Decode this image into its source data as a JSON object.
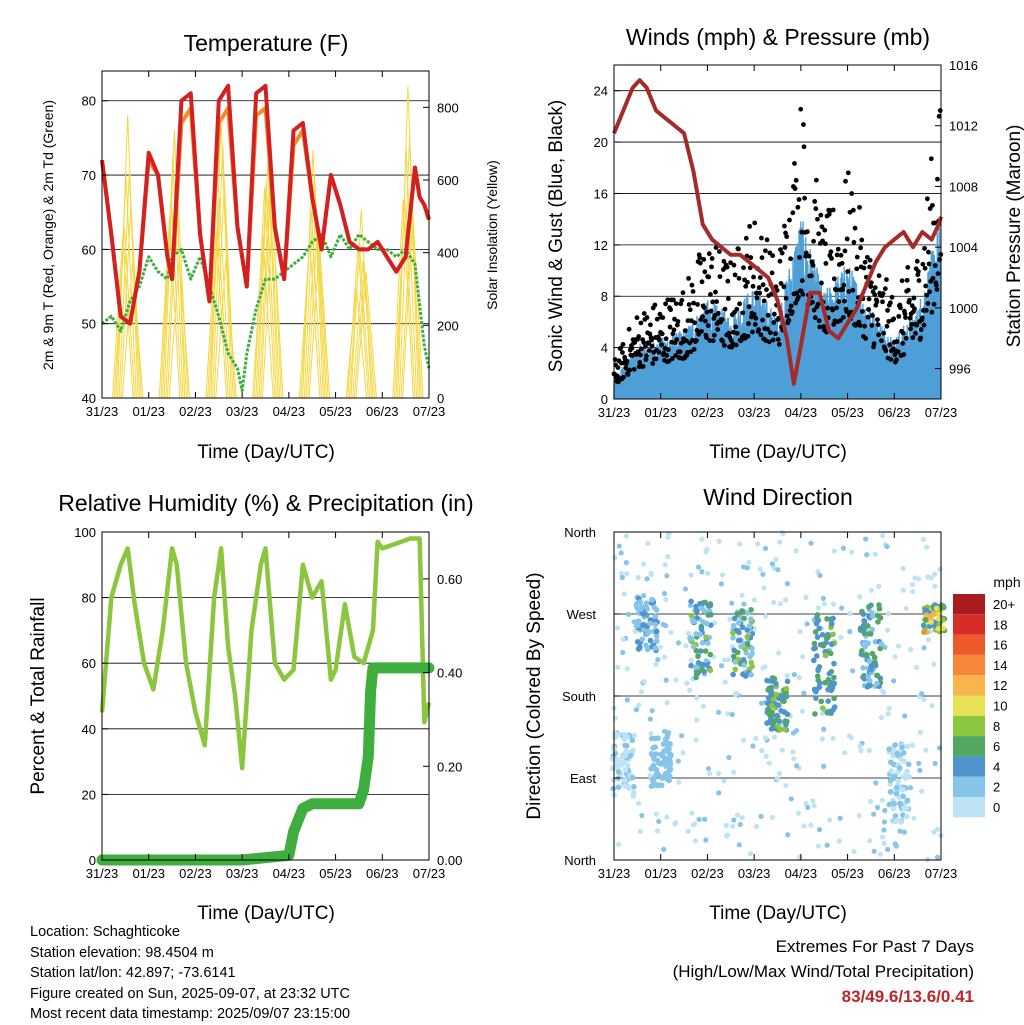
{
  "panels": {
    "temperature": {
      "title": "Temperature (F)",
      "ylabel": "2m & 9m T (Red, Orange) & 2m Td (Green)",
      "y2label": "Solar Insolation (Yellow)",
      "xlabel": "Time (Day/UTC)"
    },
    "winds": {
      "title": "Winds (mph) & Pressure (mb)",
      "ylabel": "Sonic Wind & Gust (Blue, Black)",
      "y2label": "Station Pressure (Maroon)",
      "xlabel": "Time (Day/UTC)"
    },
    "humidity": {
      "title": "Relative Humidity (%) & Precipitation (in)",
      "ylabel": "Percent & Total Rainfall",
      "xlabel": "Time (Day/UTC)"
    },
    "direction": {
      "title": "Wind Direction",
      "ylabel": "Direction (Colored By Speed)",
      "xlabel": "Time (Day/UTC)",
      "colorbar_title": "mph"
    }
  },
  "footer": {
    "location": "Location: Schaghticoke",
    "elevation": "Station elevation: 98.4504 m",
    "latlon": "Station lat/lon: 42.897; -73.6141",
    "created": "Figure created on Sun, 2025-09-07, at 23:32 UTC",
    "recent": "Most recent data timestamp: 2025/09/07 23:15:00"
  },
  "extremes": {
    "title": "Extremes For Past 7 Days",
    "subtitle": "(High/Low/Max Wind/Total Precipitation)",
    "values": "83/49.6/13.6/0.41"
  },
  "chart_data": [
    {
      "type": "line",
      "id": "temperature",
      "x_ticks": [
        "31/23",
        "01/23",
        "02/23",
        "03/23",
        "04/23",
        "05/23",
        "06/23",
        "07/23"
      ],
      "ylim": [
        40,
        84
      ],
      "yticks": [
        40,
        50,
        60,
        70,
        80
      ],
      "y2lim": [
        0,
        900
      ],
      "y2ticks": [
        0,
        200,
        400,
        600,
        800
      ],
      "grid": true,
      "series": [
        {
          "color": "#d42020",
          "x": [
            0,
            0.2,
            0.4,
            0.6,
            0.8,
            1.0,
            1.2,
            1.4,
            1.5,
            1.7,
            1.9,
            2.1,
            2.3,
            2.5,
            2.7,
            2.9,
            3.1,
            3.3,
            3.5,
            3.7,
            3.9,
            4.1,
            4.3,
            4.5,
            4.7,
            4.9,
            5.1,
            5.3,
            5.5,
            5.7,
            5.9,
            6.1,
            6.3,
            6.5,
            6.7,
            6.8,
            6.9,
            7.0
          ],
          "values": [
            72,
            62,
            51,
            50,
            57,
            73,
            70,
            59,
            56,
            80,
            81,
            62,
            53,
            80,
            82,
            63,
            55,
            81,
            82,
            63,
            56,
            76,
            77,
            67,
            60,
            70,
            66,
            61,
            60,
            60,
            61,
            59,
            57,
            59,
            71,
            67,
            66,
            64
          ]
        },
        {
          "color": "#f28c28",
          "x": [
            0,
            0.2,
            0.4,
            0.6,
            0.8,
            1.0,
            1.2,
            1.4,
            1.5,
            1.7,
            1.9,
            2.1,
            2.3,
            2.5,
            2.7,
            2.9,
            3.1,
            3.3,
            3.5,
            3.7,
            3.9,
            4.1,
            4.3,
            4.5,
            4.7,
            4.9,
            5.1,
            5.3,
            5.5,
            5.7,
            5.9,
            6.1,
            6.3,
            6.5,
            6.7,
            6.8,
            6.9,
            7.0
          ],
          "values": [
            72,
            62,
            51,
            50,
            57,
            72,
            70,
            59,
            56,
            77,
            79,
            62,
            53,
            77,
            79,
            63,
            55,
            78,
            79,
            63,
            56,
            74,
            76,
            67,
            60,
            70,
            66,
            61,
            60,
            60,
            61,
            59,
            57,
            59,
            71,
            67,
            66,
            64
          ]
        },
        {
          "color": "#3fae3f",
          "x": [
            0,
            0.2,
            0.4,
            0.6,
            0.8,
            1.0,
            1.2,
            1.4,
            1.5,
            1.7,
            1.9,
            2.1,
            2.3,
            2.5,
            2.7,
            2.9,
            3.0,
            3.1,
            3.3,
            3.5,
            3.7,
            3.9,
            4.1,
            4.3,
            4.5,
            4.7,
            4.9,
            5.1,
            5.3,
            5.5,
            5.7,
            5.9,
            6.1,
            6.3,
            6.5,
            6.7,
            6.9,
            7.0
          ],
          "values": [
            50,
            51,
            49,
            53,
            55,
            59,
            57,
            56,
            59,
            60,
            56,
            59,
            55,
            51,
            46,
            44,
            41,
            46,
            52,
            56,
            56,
            57,
            58,
            59,
            61,
            62,
            59,
            62,
            60,
            62,
            61,
            60,
            60,
            59,
            60,
            58,
            47,
            44
          ]
        }
      ],
      "insolation": {
        "color": "#f5d742",
        "peaks_day": [
          0.55,
          1.55,
          2.55,
          3.55,
          4.55,
          5.55,
          6.55
        ],
        "peaks_value": [
          780,
          800,
          820,
          830,
          820,
          560,
          900
        ]
      }
    },
    {
      "type": "line",
      "id": "winds",
      "x_ticks": [
        "31/23",
        "01/23",
        "02/23",
        "03/23",
        "04/23",
        "05/23",
        "06/23",
        "07/23"
      ],
      "ylim": [
        0,
        26
      ],
      "yticks": [
        0,
        4,
        8,
        12,
        16,
        20,
        24
      ],
      "y2lim": [
        994,
        1016
      ],
      "y2ticks": [
        996,
        1000,
        1004,
        1008,
        1012,
        1016
      ],
      "pressure": {
        "color": "#a52a2a",
        "x": [
          0,
          0.2,
          0.4,
          0.55,
          0.7,
          0.9,
          1.1,
          1.3,
          1.5,
          1.7,
          1.9,
          2.1,
          2.3,
          2.5,
          2.7,
          2.9,
          3.1,
          3.3,
          3.5,
          3.7,
          3.85,
          4.0,
          4.2,
          4.4,
          4.6,
          4.8,
          5.0,
          5.2,
          5.4,
          5.6,
          5.8,
          6.0,
          6.2,
          6.4,
          6.6,
          6.8,
          6.95,
          7.0
        ],
        "values": [
          1011.5,
          1013,
          1014.5,
          1015,
          1014.5,
          1013,
          1012.5,
          1012,
          1011.5,
          1009,
          1005.5,
          1004.5,
          1004,
          1003.5,
          1003.5,
          1003,
          1002.5,
          1002,
          1000.5,
          998,
          995,
          997.5,
          1001,
          1001,
          998.5,
          998,
          999,
          1000,
          1001.5,
          1003,
          1004,
          1004.5,
          1005,
          1004,
          1005,
          1004.5,
          1005.5,
          1006
        ]
      },
      "gust_color": "#000000",
      "wind_color": "#4f9fd8",
      "gust_envelope": {
        "x": [
          0,
          0.5,
          1,
          1.5,
          2,
          2.5,
          3,
          3.5,
          4,
          4.5,
          5,
          5.5,
          6,
          6.5,
          7
        ],
        "values": [
          3,
          7,
          8,
          9,
          13,
          11,
          15,
          11,
          24,
          14,
          18,
          12,
          8,
          12,
          24
        ]
      }
    },
    {
      "type": "line",
      "id": "humidity",
      "x_ticks": [
        "31/23",
        "01/23",
        "02/23",
        "03/23",
        "04/23",
        "05/23",
        "06/23",
        "07/23"
      ],
      "ylim": [
        0,
        100
      ],
      "yticks": [
        0,
        20,
        40,
        60,
        80,
        100
      ],
      "y2lim": [
        0,
        0.7
      ],
      "y2ticks": [
        0,
        0.2,
        0.4,
        0.6
      ],
      "y2ticklabels": [
        "0.00",
        "0.20",
        "0.40",
        "0.60"
      ],
      "rh": {
        "color": "#8cc63f",
        "x": [
          0,
          0.2,
          0.4,
          0.55,
          0.7,
          0.9,
          1.1,
          1.3,
          1.5,
          1.6,
          1.8,
          2.0,
          2.2,
          2.4,
          2.55,
          2.7,
          2.85,
          3.0,
          3.2,
          3.4,
          3.5,
          3.7,
          3.9,
          4.1,
          4.3,
          4.5,
          4.7,
          4.9,
          5.0,
          5.2,
          5.4,
          5.6,
          5.8,
          5.9,
          6.0,
          6.2,
          6.4,
          6.6,
          6.8,
          6.9,
          7.0
        ],
        "values": [
          45,
          80,
          90,
          95,
          78,
          60,
          52,
          70,
          95,
          90,
          60,
          45,
          35,
          80,
          95,
          65,
          50,
          28,
          70,
          90,
          95,
          60,
          55,
          58,
          90,
          80,
          85,
          55,
          58,
          78,
          62,
          60,
          70,
          97,
          95,
          96,
          97,
          98,
          98,
          42,
          48
        ]
      },
      "precip": {
        "color": "#3fae3f",
        "x": [
          0,
          1,
          2,
          3,
          4.0,
          4.1,
          4.3,
          4.5,
          5.0,
          5.5,
          5.6,
          5.7,
          5.75,
          5.8,
          6.0,
          6.5,
          7.0
        ],
        "values": [
          0,
          0,
          0,
          0,
          0.01,
          0.06,
          0.11,
          0.12,
          0.12,
          0.12,
          0.15,
          0.22,
          0.36,
          0.41,
          0.41,
          0.41,
          0.41
        ]
      }
    },
    {
      "type": "scatter",
      "id": "direction",
      "x_ticks": [
        "31/23",
        "01/23",
        "02/23",
        "03/23",
        "04/23",
        "05/23",
        "06/23",
        "07/23"
      ],
      "yticks": [
        "North",
        "East",
        "South",
        "West",
        "North"
      ],
      "ylim": [
        0,
        360
      ],
      "colorbar": {
        "labels": [
          "0",
          "2",
          "4",
          "6",
          "8",
          "10",
          "12",
          "14",
          "16",
          "18",
          "20+"
        ],
        "colors": [
          "#bde3f5",
          "#86c4ea",
          "#4f93cf",
          "#52a860",
          "#8cc63f",
          "#e8e055",
          "#f9b44e",
          "#f6873a",
          "#ec5a2c",
          "#d62d26",
          "#a91b1e"
        ]
      },
      "clusters": [
        {
          "day": 0.2,
          "dir": [
            70,
            140
          ],
          "speed": [
            0,
            2
          ]
        },
        {
          "day": 0.7,
          "dir": [
            230,
            290
          ],
          "speed": [
            2,
            4
          ]
        },
        {
          "day": 1.0,
          "dir": [
            80,
            140
          ],
          "speed": [
            1,
            3
          ]
        },
        {
          "day": 1.85,
          "dir": [
            200,
            285
          ],
          "speed": [
            2,
            8
          ]
        },
        {
          "day": 2.75,
          "dir": [
            200,
            275
          ],
          "speed": [
            2,
            8
          ]
        },
        {
          "day": 3.5,
          "dir": [
            140,
            200
          ],
          "speed": [
            4,
            8
          ]
        },
        {
          "day": 4.5,
          "dir": [
            160,
            270
          ],
          "speed": [
            3,
            8
          ]
        },
        {
          "day": 5.5,
          "dir": [
            190,
            280
          ],
          "speed": [
            2,
            7
          ]
        },
        {
          "day": 6.1,
          "dir": [
            40,
            130
          ],
          "speed": [
            0,
            3
          ]
        },
        {
          "day": 6.85,
          "dir": [
            250,
            280
          ],
          "speed": [
            4,
            14
          ]
        }
      ]
    }
  ]
}
